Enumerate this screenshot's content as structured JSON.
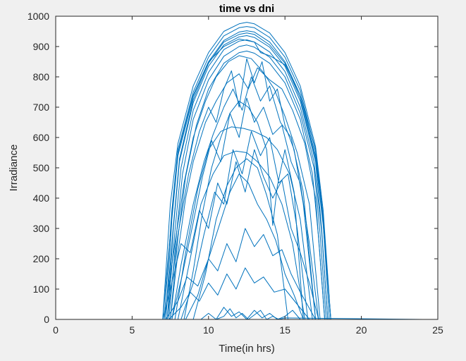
{
  "colors": {
    "figure_background": "#f0f0f0",
    "axes_background": "#ffffff",
    "axes_color": "#262626",
    "series_color": "#0072bd"
  },
  "chart_data": {
    "type": "line",
    "title": "time vs dni",
    "xlabel": "Time(in hrs)",
    "ylabel": "Irradiance",
    "xlim": [
      0,
      25
    ],
    "ylim": [
      0,
      1000
    ],
    "xticks": [
      0,
      5,
      10,
      15,
      20,
      25
    ],
    "yticks": [
      0,
      100,
      200,
      300,
      400,
      500,
      600,
      700,
      800,
      900,
      1000
    ],
    "grid": false,
    "legend": "none",
    "series_note": "",
    "series": [
      {
        "x": [
          0,
          7,
          7.5,
          8,
          9,
          10,
          11,
          12,
          12.5,
          13,
          14,
          15,
          16,
          17,
          17.5,
          18,
          24
        ],
        "values": [
          0,
          0,
          380,
          580,
          770,
          880,
          950,
          975,
          980,
          975,
          945,
          880,
          770,
          570,
          360,
          0,
          0
        ]
      },
      {
        "x": [
          0,
          7.1,
          7.6,
          8,
          9,
          10,
          11,
          12,
          12.5,
          13,
          14,
          15,
          16,
          17,
          17.5,
          18,
          24
        ],
        "values": [
          0,
          0,
          360,
          560,
          750,
          865,
          935,
          962,
          966,
          962,
          930,
          865,
          755,
          555,
          340,
          0,
          0
        ]
      },
      {
        "x": [
          0,
          7.2,
          7.6,
          8,
          9,
          10,
          11,
          12,
          12.5,
          13,
          14,
          15,
          16,
          17,
          17.5,
          17.9,
          24
        ],
        "values": [
          0,
          0,
          330,
          540,
          735,
          850,
          920,
          948,
          952,
          948,
          915,
          850,
          740,
          540,
          320,
          0,
          0
        ]
      },
      {
        "x": [
          0,
          7.3,
          7.7,
          8.1,
          9,
          10,
          11,
          12,
          12.5,
          13,
          14,
          15,
          16,
          17,
          17.4,
          17.8,
          24
        ],
        "values": [
          0,
          0,
          300,
          520,
          715,
          835,
          905,
          932,
          936,
          930,
          898,
          835,
          720,
          520,
          300,
          0,
          0
        ]
      },
      {
        "x": [
          0,
          7.3,
          7.8,
          8.2,
          9,
          10,
          11,
          12,
          12.5,
          13,
          14,
          15,
          16,
          16.9,
          17.4,
          17.8,
          24
        ],
        "values": [
          0,
          0,
          290,
          500,
          690,
          815,
          890,
          918,
          922,
          915,
          882,
          818,
          700,
          520,
          290,
          0,
          0
        ]
      },
      {
        "x": [
          0,
          7.4,
          7.9,
          8.3,
          9,
          10,
          11,
          12,
          12.5,
          13,
          14,
          15,
          16,
          16.9,
          17.3,
          17.7,
          24
        ],
        "values": [
          0,
          0,
          280,
          480,
          660,
          790,
          868,
          900,
          905,
          898,
          865,
          800,
          680,
          500,
          280,
          0,
          0
        ]
      },
      {
        "x": [
          0,
          7.5,
          8,
          8.5,
          9.2,
          10,
          11,
          12,
          12.5,
          13,
          14,
          15,
          16,
          16.8,
          17.2,
          17.6,
          24
        ],
        "values": [
          0,
          0,
          270,
          470,
          640,
          760,
          845,
          880,
          885,
          878,
          845,
          780,
          660,
          480,
          270,
          0,
          0
        ]
      },
      {
        "x": [
          0,
          7.2,
          7.7,
          8.1,
          9,
          10,
          11,
          12,
          12.5,
          13,
          14,
          15,
          16,
          17,
          17.5,
          18,
          24
        ],
        "values": [
          0,
          0,
          310,
          530,
          725,
          845,
          915,
          940,
          945,
          940,
          905,
          845,
          730,
          530,
          310,
          0,
          0
        ]
      },
      {
        "x": [
          0,
          7,
          7.6,
          8,
          9,
          10,
          11,
          12,
          13,
          13.4,
          14,
          15,
          16,
          17,
          17.5,
          18,
          24
        ],
        "values": [
          0,
          0,
          340,
          550,
          740,
          850,
          900,
          925,
          915,
          880,
          870,
          840,
          740,
          560,
          330,
          0,
          0
        ]
      },
      {
        "x": [
          0,
          7.5,
          8,
          8.5,
          9,
          9.8,
          10.5,
          11.2,
          12,
          12.6,
          13.2,
          14,
          14.8,
          15.5,
          16.3,
          17,
          17.6,
          24
        ],
        "values": [
          0,
          0,
          220,
          400,
          520,
          650,
          720,
          780,
          810,
          760,
          830,
          790,
          760,
          690,
          580,
          400,
          0,
          0
        ]
      },
      {
        "x": [
          0,
          7.6,
          8.2,
          9,
          9.7,
          10.3,
          11,
          11.6,
          12.2,
          12.8,
          13.4,
          14,
          14.7,
          15.4,
          16.2,
          17,
          24
        ],
        "values": [
          0,
          0,
          180,
          380,
          520,
          610,
          700,
          760,
          690,
          800,
          720,
          770,
          650,
          600,
          420,
          0,
          0
        ]
      },
      {
        "x": [
          0,
          7.8,
          8.5,
          9.3,
          10,
          10.8,
          11.5,
          12.3,
          13,
          13.8,
          14.5,
          15.3,
          16,
          16.8,
          24
        ],
        "values": [
          0,
          0,
          220,
          430,
          560,
          620,
          635,
          630,
          620,
          600,
          560,
          480,
          330,
          0,
          0
        ]
      },
      {
        "x": [
          0,
          8,
          8.8,
          9.5,
          10.3,
          11,
          11.8,
          12.5,
          13.2,
          14,
          14.8,
          15.5,
          16.3,
          24
        ],
        "values": [
          0,
          0,
          200,
          380,
          480,
          540,
          555,
          550,
          520,
          470,
          380,
          250,
          0,
          0
        ]
      },
      {
        "x": [
          0,
          9,
          9.8,
          10.5,
          11.2,
          11.8,
          12.5,
          13.2,
          13.8,
          14.5,
          15.2,
          24
        ],
        "values": [
          0,
          0,
          150,
          330,
          440,
          500,
          530,
          500,
          410,
          280,
          0,
          0
        ]
      },
      {
        "x": [
          0,
          7.6,
          8.3,
          9,
          9.6,
          10.2,
          10.8,
          11.4,
          12,
          12.5,
          13,
          13.6,
          14.2,
          14.8,
          15.4,
          16,
          16.6,
          17.2,
          24
        ],
        "values": [
          0,
          0,
          150,
          320,
          470,
          590,
          520,
          680,
          600,
          730,
          650,
          700,
          610,
          640,
          520,
          450,
          250,
          0,
          0
        ]
      },
      {
        "x": [
          0,
          8.2,
          9,
          9.7,
          10.4,
          11,
          11.6,
          12.2,
          12.8,
          13.4,
          14,
          14.6,
          15.2,
          15.8,
          16.5,
          24
        ],
        "values": [
          0,
          0,
          120,
          280,
          420,
          380,
          560,
          480,
          620,
          540,
          600,
          450,
          480,
          300,
          0,
          0
        ]
      },
      {
        "x": [
          0,
          8.5,
          9.3,
          10,
          10.7,
          11.4,
          12,
          12.6,
          13.2,
          13.8,
          14.4,
          15,
          15.6,
          16.2,
          24
        ],
        "values": [
          0,
          0,
          80,
          200,
          310,
          420,
          480,
          450,
          380,
          330,
          260,
          150,
          80,
          0,
          0
        ]
      },
      {
        "x": [
          0,
          7,
          7.6,
          8.2,
          8.8,
          9.4,
          10,
          10.6,
          11.2,
          11.8,
          12.4,
          13,
          13.6,
          14.2,
          14.8,
          15.4,
          16,
          16.6,
          17.2,
          24
        ],
        "values": [
          0,
          0,
          120,
          250,
          220,
          360,
          300,
          450,
          380,
          520,
          420,
          560,
          470,
          400,
          460,
          300,
          220,
          120,
          0,
          0
        ]
      },
      {
        "x": [
          0,
          7.2,
          8,
          8.6,
          9.3,
          10,
          10.6,
          11.2,
          11.8,
          12.4,
          13,
          13.6,
          14.2,
          14.8,
          15.4,
          16,
          17,
          24
        ],
        "values": [
          0,
          0,
          60,
          140,
          110,
          200,
          160,
          250,
          190,
          300,
          240,
          280,
          210,
          230,
          150,
          90,
          0,
          0
        ]
      },
      {
        "x": [
          0,
          7.4,
          8.2,
          8.8,
          9.4,
          10,
          10.6,
          11.2,
          11.8,
          12.4,
          13,
          13.6,
          14.3,
          15,
          15.8,
          16.6,
          24
        ],
        "values": [
          0,
          0,
          40,
          90,
          60,
          120,
          80,
          150,
          100,
          170,
          120,
          140,
          90,
          100,
          50,
          0,
          0
        ]
      },
      {
        "x": [
          0,
          9.5,
          10,
          10.5,
          11,
          11.5,
          12,
          12.5,
          13,
          13.5,
          14,
          14.5,
          15,
          15.5,
          16,
          24
        ],
        "values": [
          0,
          0,
          20,
          0,
          40,
          10,
          25,
          0,
          30,
          5,
          20,
          0,
          10,
          30,
          0,
          0
        ]
      },
      {
        "x": [
          0,
          10.5,
          11,
          11.4,
          11.8,
          12.2,
          12.6,
          13,
          13.4,
          13.8,
          14.2,
          14.6,
          15,
          24
        ],
        "values": [
          0,
          0,
          10,
          35,
          5,
          20,
          0,
          15,
          30,
          0,
          10,
          0,
          5,
          0
        ]
      },
      {
        "x": [
          0,
          7.3,
          8,
          8.7,
          9.4,
          10,
          10.5,
          11,
          11.5,
          12,
          12.5,
          13,
          13.5,
          14,
          14.5,
          15,
          15.6,
          16.2,
          17,
          24
        ],
        "values": [
          0,
          0,
          280,
          480,
          620,
          700,
          650,
          760,
          820,
          700,
          860,
          780,
          850,
          720,
          760,
          640,
          560,
          380,
          0,
          0
        ]
      },
      {
        "x": [
          0,
          8.4,
          9,
          9.6,
          10.2,
          10.8,
          11.4,
          12,
          12.6,
          13.2,
          13.8,
          14.2,
          14.5,
          15,
          15.6,
          16.2,
          24
        ],
        "values": [
          0,
          0,
          160,
          350,
          500,
          600,
          680,
          720,
          700,
          650,
          560,
          310,
          440,
          560,
          420,
          0,
          0
        ]
      },
      {
        "x": [
          0,
          7.1,
          7.8,
          8.4,
          9,
          9.8,
          10.5,
          11.3,
          12,
          12.8,
          13.5,
          14.3,
          15,
          15.8,
          16.6,
          17.3,
          24
        ],
        "values": [
          0,
          0,
          250,
          450,
          600,
          720,
          800,
          850,
          870,
          860,
          820,
          760,
          670,
          550,
          380,
          0,
          0
        ]
      }
    ]
  }
}
